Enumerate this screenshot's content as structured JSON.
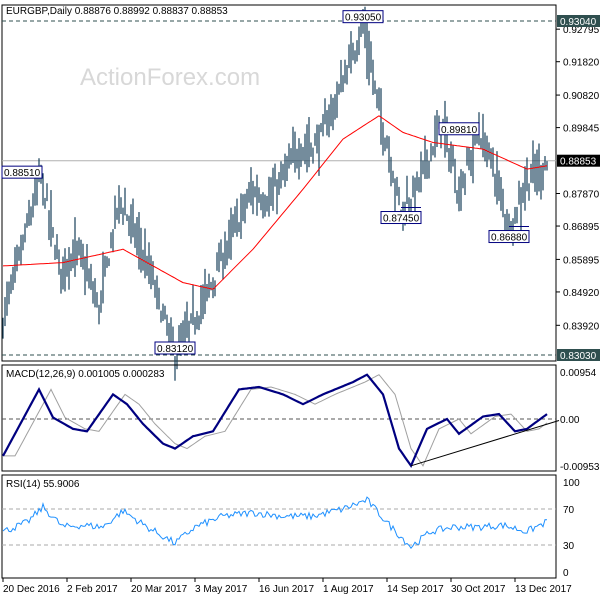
{
  "chart_data": {
    "type": "candlestick-bar",
    "title": "EURGBP,Daily",
    "ohlc_header": [
      "0.88876",
      "0.88992",
      "0.88837",
      "0.88853"
    ],
    "watermark": "ActionForex.com",
    "price_axis": {
      "ylim": [
        0.8303,
        0.9304
      ],
      "ticks": [
        "0.92795",
        "0.91820",
        "0.90820",
        "0.89845",
        "0.87870",
        "0.86895",
        "0.85895",
        "0.84920",
        "0.83920"
      ]
    },
    "current_price": "0.88853",
    "levels": [
      {
        "label": "0.93040",
        "value": 0.9304
      },
      {
        "label": "0.83030",
        "value": 0.8303
      }
    ],
    "annotations": [
      {
        "label": "0.93050",
        "value": 0.9305,
        "bar": 180
      },
      {
        "label": "0.88510",
        "value": 0.8851,
        "bar": 19
      },
      {
        "label": "0.87450",
        "value": 0.8745,
        "bar": 199
      },
      {
        "label": "0.89810",
        "value": 0.8981,
        "bar": 238
      },
      {
        "label": "0.86880",
        "value": 0.8688,
        "bar": 253
      },
      {
        "label": "0.83120",
        "value": 0.8312,
        "bar": 86
      }
    ],
    "price_waypoints": [
      [
        0,
        0.842
      ],
      [
        8,
        0.86
      ],
      [
        19,
        0.8851
      ],
      [
        28,
        0.858
      ],
      [
        38,
        0.862
      ],
      [
        48,
        0.845
      ],
      [
        58,
        0.878
      ],
      [
        66,
        0.868
      ],
      [
        74,
        0.855
      ],
      [
        86,
        0.8312
      ],
      [
        96,
        0.842
      ],
      [
        104,
        0.852
      ],
      [
        115,
        0.868
      ],
      [
        124,
        0.88
      ],
      [
        134,
        0.878
      ],
      [
        148,
        0.893
      ],
      [
        158,
        0.895
      ],
      [
        168,
        0.91
      ],
      [
        180,
        0.9305
      ],
      [
        188,
        0.905
      ],
      [
        192,
        0.895
      ],
      [
        199,
        0.8745
      ],
      [
        206,
        0.88
      ],
      [
        214,
        0.893
      ],
      [
        220,
        0.9
      ],
      [
        228,
        0.88
      ],
      [
        238,
        0.8981
      ],
      [
        245,
        0.888
      ],
      [
        253,
        0.8688
      ],
      [
        262,
        0.884
      ],
      [
        272,
        0.8885
      ]
    ],
    "ma_waypoints": [
      [
        0,
        0.857
      ],
      [
        30,
        0.858
      ],
      [
        60,
        0.862
      ],
      [
        90,
        0.852
      ],
      [
        105,
        0.85
      ],
      [
        125,
        0.862
      ],
      [
        150,
        0.88
      ],
      [
        170,
        0.895
      ],
      [
        188,
        0.902
      ],
      [
        200,
        0.897
      ],
      [
        215,
        0.894
      ],
      [
        240,
        0.892
      ],
      [
        262,
        0.886
      ],
      [
        272,
        0.887
      ]
    ],
    "macd": {
      "label": "MACD(12,26,9) 0.001005 0.000283",
      "ticks": [
        "0.00954",
        "0.00",
        "-0.009538"
      ],
      "ylim": [
        -0.009538,
        0.00954
      ],
      "main_waypoints": [
        [
          0,
          -0.0075
        ],
        [
          10,
          0.0
        ],
        [
          18,
          0.006
        ],
        [
          25,
          0.0003
        ],
        [
          35,
          -0.002
        ],
        [
          42,
          -0.0025
        ],
        [
          55,
          0.005
        ],
        [
          62,
          0.003
        ],
        [
          70,
          -0.001
        ],
        [
          80,
          -0.005
        ],
        [
          86,
          -0.006
        ],
        [
          95,
          -0.0035
        ],
        [
          105,
          -0.0025
        ],
        [
          118,
          0.006
        ],
        [
          128,
          0.0065
        ],
        [
          140,
          0.005
        ],
        [
          150,
          0.003
        ],
        [
          160,
          0.005
        ],
        [
          175,
          0.0075
        ],
        [
          182,
          0.009
        ],
        [
          190,
          0.005
        ],
        [
          198,
          -0.006
        ],
        [
          204,
          -0.0095
        ],
        [
          212,
          -0.002
        ],
        [
          222,
          0.0
        ],
        [
          228,
          -0.003
        ],
        [
          240,
          0.0005
        ],
        [
          248,
          0.001
        ],
        [
          256,
          -0.0025
        ],
        [
          262,
          -0.002
        ],
        [
          272,
          0.001
        ]
      ],
      "signal_value": 0.000283,
      "trendline": [
        [
          204,
          -0.0095
        ],
        [
          278,
          -0.0003
        ]
      ]
    },
    "rsi": {
      "label": "RSI(14) 55.9006",
      "ticks": [
        "100",
        "70",
        "30",
        "0"
      ],
      "ylim": [
        0,
        100
      ],
      "waypoints": [
        [
          0,
          45
        ],
        [
          12,
          55
        ],
        [
          20,
          72
        ],
        [
          30,
          50
        ],
        [
          40,
          52
        ],
        [
          50,
          50
        ],
        [
          60,
          68
        ],
        [
          72,
          50
        ],
        [
          86,
          32
        ],
        [
          96,
          50
        ],
        [
          110,
          62
        ],
        [
          125,
          66
        ],
        [
          140,
          62
        ],
        [
          155,
          62
        ],
        [
          170,
          70
        ],
        [
          182,
          80
        ],
        [
          192,
          55
        ],
        [
          204,
          28
        ],
        [
          214,
          45
        ],
        [
          225,
          50
        ],
        [
          238,
          50
        ],
        [
          250,
          52
        ],
        [
          262,
          45
        ],
        [
          272,
          55.9
        ]
      ]
    },
    "x_tick_labels": [
      "20 Dec 2016",
      "2 Feb 2017",
      "20 Mar 2017",
      "3 May 2017",
      "16 Jun 2017",
      "1 Aug 2017",
      "14 Sep 2017",
      "30 Oct 2017",
      "13 Dec 2017"
    ],
    "colors": {
      "bars": "#17405a",
      "ma": "#ff0000",
      "macd": "#000080",
      "signal": "#a0a0a0",
      "rsi": "#1e90ff",
      "label_bg": "#2f4f4f",
      "current_bg": "#000000"
    }
  }
}
